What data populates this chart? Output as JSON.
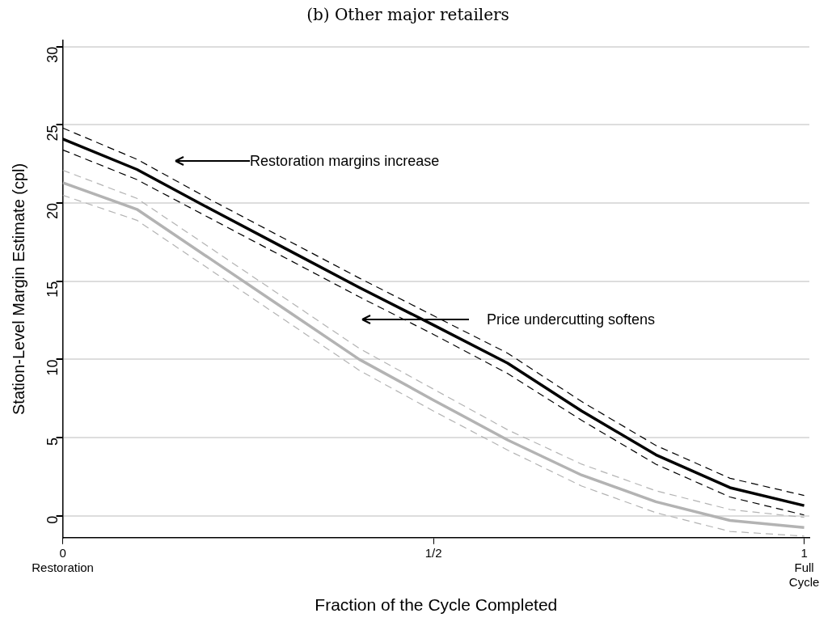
{
  "chart_data": {
    "type": "line",
    "title": "(b) Other major retailers",
    "xlabel": "Fraction of the Cycle Completed",
    "ylabel": "Station-Level Margin Estimate (cpl)",
    "x": [
      0,
      0.1,
      0.2,
      0.3,
      0.4,
      0.5,
      0.6,
      0.7,
      0.8,
      0.9,
      1
    ],
    "series": [
      {
        "color": "#000000",
        "values": [
          24.1,
          22.15,
          19.6,
          17.1,
          14.6,
          12.2,
          9.76,
          6.7,
          3.9,
          1.8,
          0.65
        ]
      },
      {
        "color": "#000000",
        "line_style": "dashed",
        "values": [
          24.8,
          22.8,
          20.2,
          17.7,
          15.2,
          12.8,
          10.4,
          7.3,
          4.5,
          2.4,
          1.3
        ]
      },
      {
        "color": "#000000",
        "line_style": "dashed",
        "values": [
          23.4,
          21.5,
          19.0,
          16.5,
          14.0,
          11.6,
          9.1,
          6.1,
          3.3,
          1.2,
          0.05
        ]
      },
      {
        "color": "#b3b3b3",
        "values": [
          21.3,
          19.6,
          16.4,
          13.2,
          10.0,
          7.4,
          4.85,
          2.6,
          0.9,
          -0.3,
          -0.75
        ]
      },
      {
        "color": "#b3b3b3",
        "line_style": "dashed",
        "values": [
          22.1,
          20.3,
          17.1,
          13.9,
          10.7,
          8.1,
          5.5,
          3.3,
          1.6,
          0.4,
          -0.1
        ]
      },
      {
        "color": "#b3b3b3",
        "line_style": "dashed",
        "values": [
          20.5,
          18.9,
          15.7,
          12.5,
          9.3,
          6.7,
          4.2,
          1.9,
          0.2,
          -1.0,
          -1.3
        ]
      }
    ],
    "xlim": [
      0,
      1.007
    ],
    "ylim": [
      -1.4,
      30.4
    ],
    "xticks": [
      {
        "value": 0,
        "label": "0\nRestoration"
      },
      {
        "value": 0.5,
        "label": "1/2"
      },
      {
        "value": 1,
        "label": "1\nFull\nCycle"
      }
    ],
    "yticks": [
      0,
      5,
      10,
      15,
      20,
      25,
      30
    ],
    "grid": "y",
    "legend": false,
    "marker": "none",
    "line_style": "solid",
    "annotations": [
      "Restoration margins increase",
      "Price undercutting softens"
    ]
  }
}
